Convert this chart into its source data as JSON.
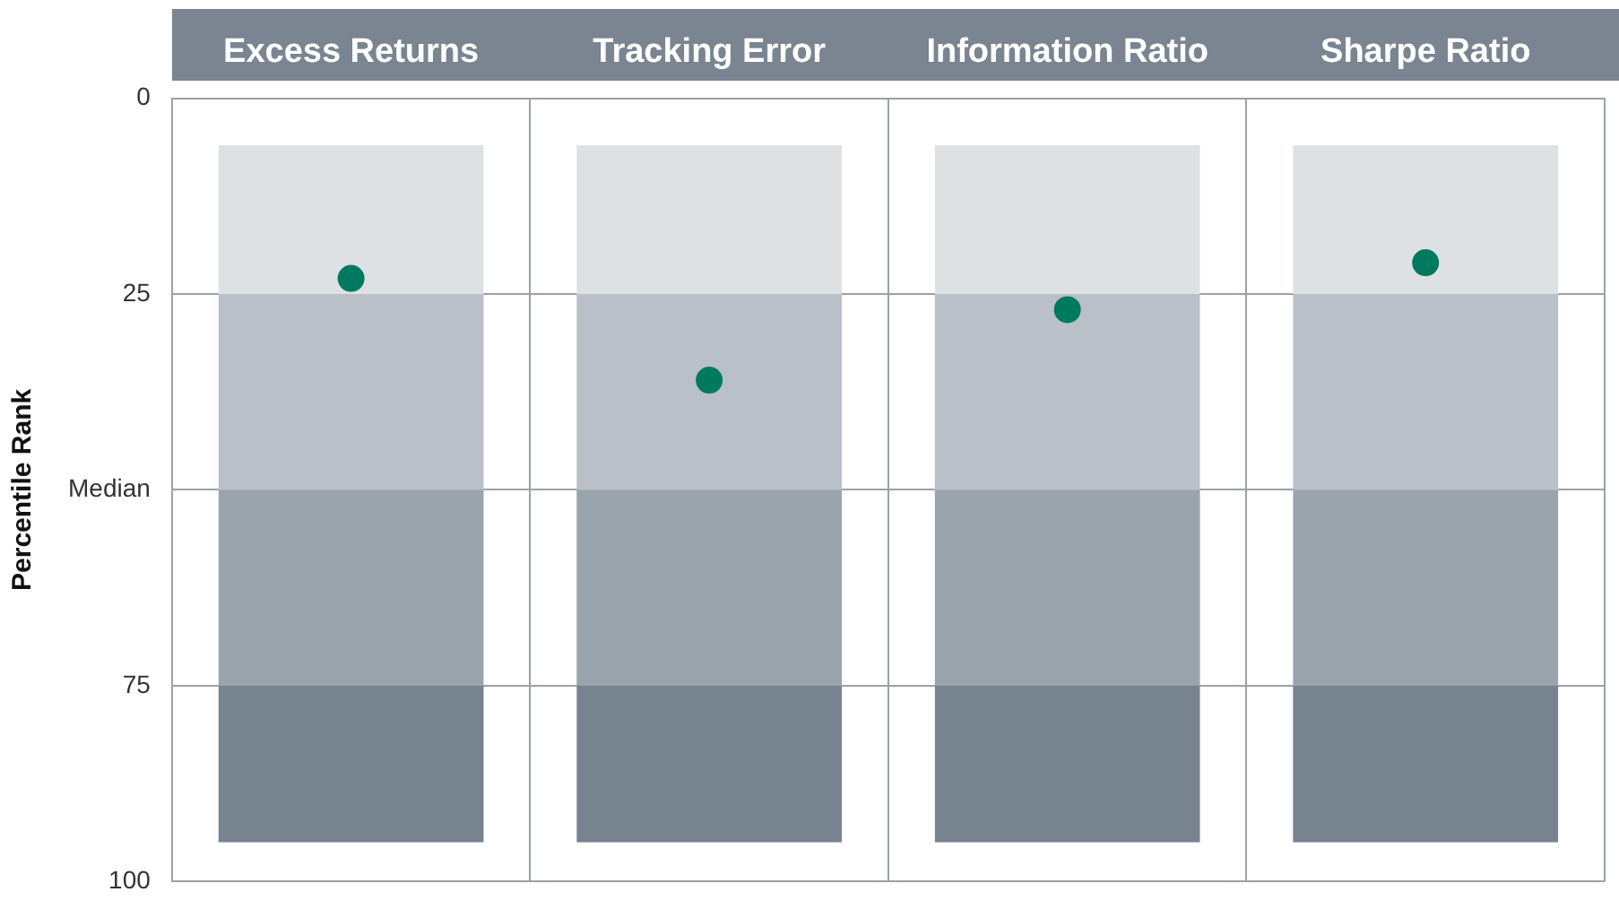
{
  "chart_data": {
    "type": "bar",
    "ylabel": "Percentile Rank",
    "categories": [
      "Excess Returns",
      "Tracking Error",
      "Information Ratio",
      "Sharpe Ratio"
    ],
    "stacked": true,
    "series": [
      {
        "color": "#dde1e4",
        "base": [
          6,
          6,
          6,
          6
        ],
        "values": [
          19,
          19,
          19,
          19
        ]
      },
      {
        "color": "#b9c0c7",
        "values": [
          25,
          25,
          25,
          25
        ]
      },
      {
        "color": "#9aa4ad",
        "values": [
          25,
          25,
          25,
          25
        ]
      },
      {
        "color": "#77838f",
        "values": [
          20,
          20,
          20,
          20
        ]
      },
      {
        "type": "scatter",
        "color": "#007a5e",
        "x": [
          "Excess Returns",
          "Tracking Error",
          "Information Ratio",
          "Sharpe Ratio"
        ],
        "values": [
          23,
          36,
          27,
          21
        ]
      }
    ],
    "ylim": [
      100,
      0
    ],
    "yticks": [
      0,
      25,
      {
        "value": 50,
        "label": "Median"
      },
      75,
      100
    ],
    "grid": true,
    "legend": false,
    "marker": "circle"
  }
}
